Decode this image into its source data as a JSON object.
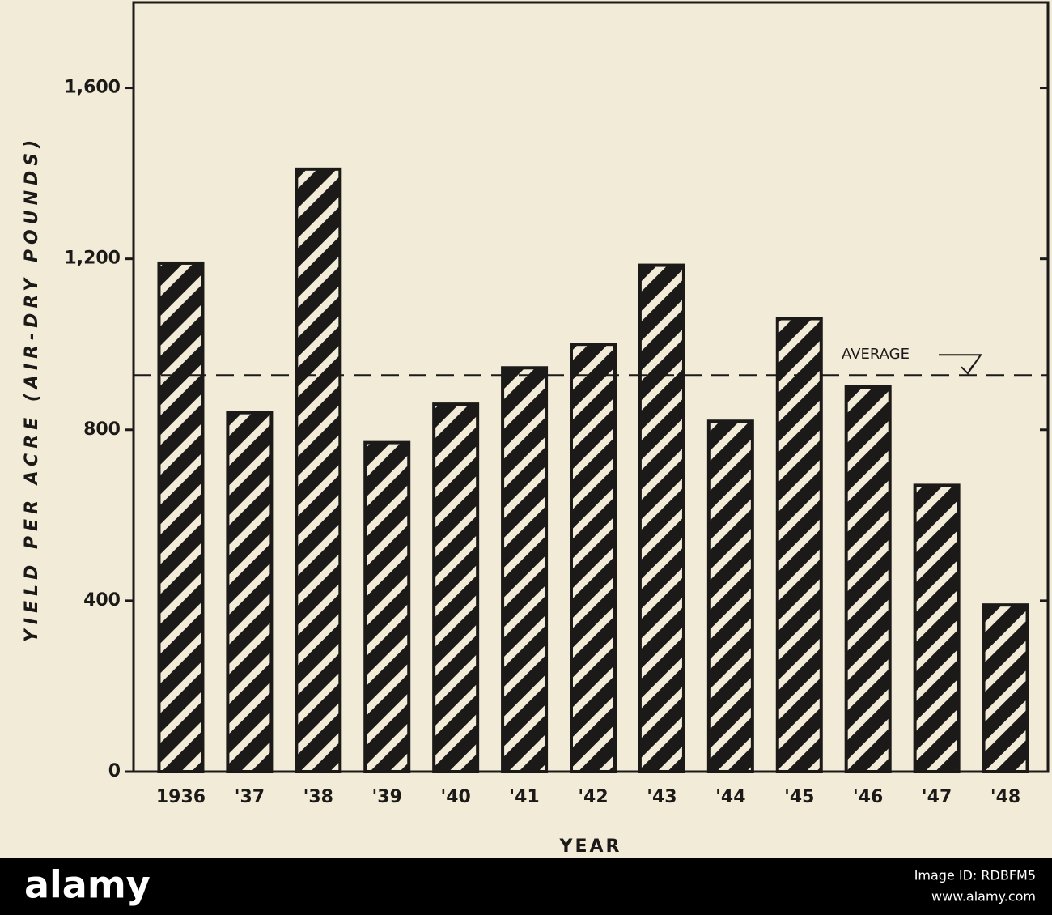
{
  "chart_data": {
    "type": "bar",
    "y_axis_label": "YIELD PER ACRE (AIR-DRY POUNDS)",
    "x_axis_label": "YEAR",
    "categories": [
      "1936",
      "'37",
      "'38",
      "'39",
      "'40",
      "'41",
      "'42",
      "'43",
      "'44",
      "'45",
      "'46",
      "'47",
      "'48"
    ],
    "values": [
      1190,
      840,
      1410,
      770,
      860,
      945,
      1000,
      1185,
      820,
      1060,
      900,
      670,
      390
    ],
    "color": "#1c1a18",
    "ylim": [
      0,
      1800
    ],
    "yticks": [
      0,
      400,
      800,
      {
        "value": 1200,
        "label": "1,200"
      },
      {
        "value": 1600,
        "label": "1,600"
      }
    ],
    "average": 928,
    "average_label": "AVERAGE"
  },
  "watermark": {
    "brand": "alamy",
    "image_id": "Image ID: RDBFM5",
    "url": "www.alamy.com"
  }
}
